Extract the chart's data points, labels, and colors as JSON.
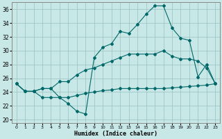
{
  "xlabel": "Humidex (Indice chaleur)",
  "xlim": [
    -0.5,
    23.5
  ],
  "ylim": [
    19.5,
    37.0
  ],
  "yticks": [
    20,
    22,
    24,
    26,
    28,
    30,
    32,
    34,
    36
  ],
  "xticks": [
    0,
    1,
    2,
    3,
    4,
    5,
    6,
    7,
    8,
    9,
    10,
    11,
    12,
    13,
    14,
    15,
    16,
    17,
    18,
    19,
    20,
    21,
    22,
    23
  ],
  "xtick_labels": [
    "0",
    "1",
    "2",
    "3",
    "4",
    "5",
    "6",
    "7",
    "8",
    "9",
    "10",
    "11",
    "12",
    "13",
    "14",
    "15",
    "16",
    "17",
    "18",
    "19",
    "20",
    "21",
    "22",
    "23"
  ],
  "background_color": "#c8e8e8",
  "line_color": "#006868",
  "grid_color": "#9bbfbf",
  "hours": [
    0,
    1,
    2,
    3,
    4,
    5,
    6,
    7,
    8,
    9,
    10,
    11,
    12,
    13,
    14,
    15,
    16,
    17,
    18,
    19,
    20,
    21,
    22,
    23
  ],
  "line_main": [
    25.2,
    24.1,
    24.1,
    24.5,
    24.5,
    23.2,
    22.3,
    21.2,
    20.8,
    29.0,
    30.5,
    31.0,
    32.8,
    32.5,
    33.8,
    35.3,
    36.5,
    36.5,
    33.3,
    31.8,
    31.5,
    26.2,
    28.0,
    25.2
  ],
  "line_upper": [
    25.2,
    24.1,
    24.1,
    24.5,
    24.5,
    25.5,
    25.5,
    26.5,
    27.2,
    27.5,
    28.0,
    28.5,
    29.0,
    29.5,
    29.5,
    29.5,
    29.5,
    30.0,
    29.2,
    28.8,
    28.8,
    28.5,
    27.5,
    25.2
  ],
  "line_lower": [
    25.2,
    24.1,
    24.1,
    23.2,
    23.2,
    23.2,
    23.2,
    23.5,
    23.8,
    24.0,
    24.2,
    24.3,
    24.5,
    24.5,
    24.5,
    24.5,
    24.5,
    24.5,
    24.6,
    24.7,
    24.8,
    24.9,
    25.0,
    25.2
  ]
}
